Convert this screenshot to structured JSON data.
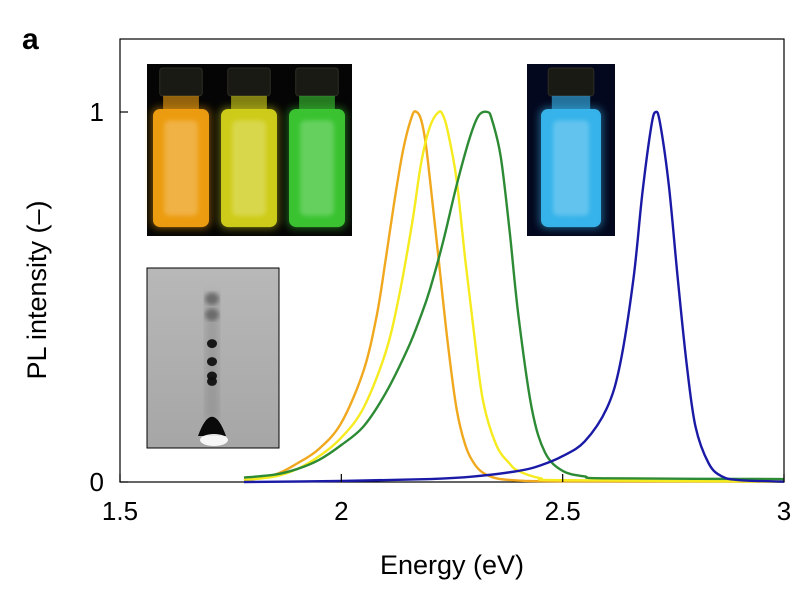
{
  "chart_data": {
    "type": "line",
    "panel_label": "a",
    "xlabel": "Energy (eV)",
    "ylabel": "PL intensity (–)",
    "xlim": [
      1.5,
      3.0
    ],
    "ylim": [
      0,
      1.1
    ],
    "x_ticks": [
      1.5,
      2.0,
      2.5,
      3.0
    ],
    "x_tick_labels": [
      "1.5",
      "2",
      "2.5",
      "3"
    ],
    "y_ticks": [
      0,
      1
    ],
    "y_tick_labels": [
      "0",
      "1"
    ],
    "grid": false,
    "series": [
      {
        "color": "#f0a81e",
        "x": [
          1.78,
          1.85,
          1.9,
          1.95,
          2.0,
          2.05,
          2.08,
          2.1,
          2.12,
          2.14,
          2.16,
          2.17,
          2.18,
          2.19,
          2.2,
          2.22,
          2.24,
          2.26,
          2.28,
          2.3,
          2.32,
          2.35,
          2.4,
          2.5,
          3.0
        ],
        "values": [
          0.005,
          0.02,
          0.05,
          0.09,
          0.16,
          0.3,
          0.45,
          0.6,
          0.76,
          0.9,
          0.99,
          1.0,
          0.98,
          0.92,
          0.82,
          0.6,
          0.38,
          0.2,
          0.1,
          0.05,
          0.025,
          0.01,
          0.004,
          0.002,
          0.001
        ]
      },
      {
        "color": "#f5eb1e",
        "x": [
          1.78,
          1.85,
          1.9,
          1.95,
          2.0,
          2.05,
          2.1,
          2.13,
          2.16,
          2.18,
          2.2,
          2.22,
          2.23,
          2.24,
          2.26,
          2.28,
          2.3,
          2.32,
          2.35,
          2.38,
          2.4,
          2.45,
          2.5,
          3.0
        ],
        "values": [
          0.005,
          0.015,
          0.035,
          0.07,
          0.12,
          0.2,
          0.35,
          0.5,
          0.7,
          0.86,
          0.96,
          1.0,
          0.99,
          0.95,
          0.82,
          0.6,
          0.4,
          0.22,
          0.1,
          0.05,
          0.03,
          0.01,
          0.005,
          0.001
        ]
      },
      {
        "color": "#2e8b35",
        "x": [
          1.78,
          1.85,
          1.9,
          1.95,
          2.0,
          2.05,
          2.1,
          2.15,
          2.18,
          2.2,
          2.23,
          2.26,
          2.29,
          2.31,
          2.33,
          2.34,
          2.36,
          2.38,
          2.4,
          2.43,
          2.46,
          2.5,
          2.55,
          2.6,
          3.0
        ],
        "values": [
          0.012,
          0.02,
          0.035,
          0.06,
          0.1,
          0.15,
          0.24,
          0.36,
          0.45,
          0.52,
          0.65,
          0.8,
          0.93,
          0.99,
          1.0,
          0.98,
          0.88,
          0.68,
          0.45,
          0.2,
          0.08,
          0.03,
          0.015,
          0.01,
          0.008
        ]
      },
      {
        "color": "#1a1aa6",
        "x": [
          1.78,
          2.0,
          2.2,
          2.3,
          2.4,
          2.45,
          2.5,
          2.55,
          2.6,
          2.63,
          2.66,
          2.68,
          2.7,
          2.71,
          2.72,
          2.74,
          2.76,
          2.78,
          2.8,
          2.83,
          2.86,
          2.9,
          3.0
        ],
        "values": [
          0.0,
          0.003,
          0.008,
          0.015,
          0.03,
          0.045,
          0.07,
          0.11,
          0.2,
          0.32,
          0.55,
          0.78,
          0.96,
          1.0,
          0.97,
          0.8,
          0.55,
          0.32,
          0.15,
          0.05,
          0.015,
          0.005,
          0.001
        ]
      }
    ]
  },
  "insets": {
    "vials_left": {
      "colors": [
        "#f2a010",
        "#d4d21a",
        "#3cc833"
      ]
    },
    "vial_right": {
      "colors": [
        "#38b8f0"
      ]
    },
    "tlc_plate": {
      "spots": [
        0.17,
        0.26,
        0.42,
        0.52,
        0.6,
        0.63
      ]
    }
  }
}
